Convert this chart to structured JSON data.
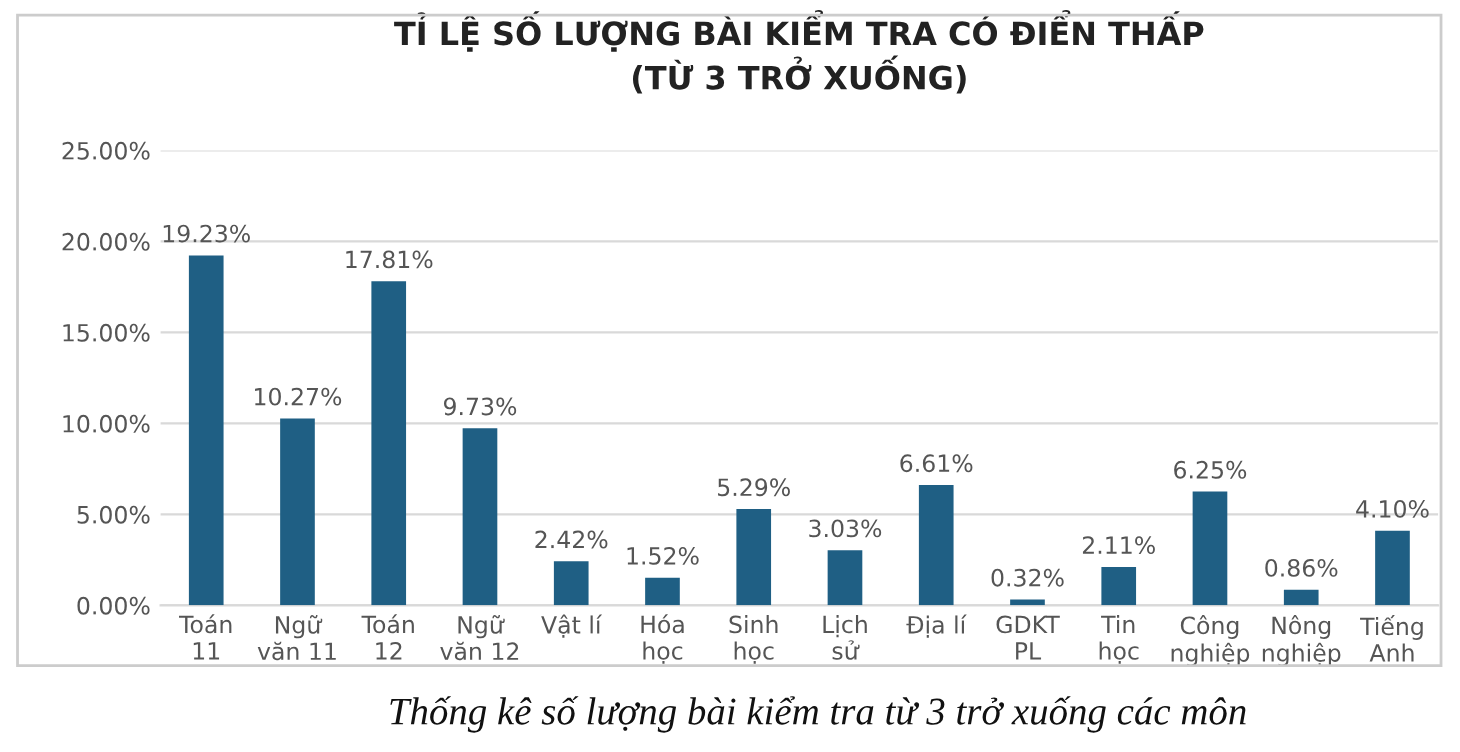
{
  "chart_data": {
    "type": "bar",
    "title": "TỈ LỆ SỐ LƯỢNG BÀI KIỂM TRA CÓ ĐIỂN THẤP\n(TỪ 3 TRỞ XUỐNG)",
    "categories": [
      "Toán\n11",
      "Ngữ\nvăn 11",
      "Toán\n12",
      "Ngữ\nvăn 12",
      "Vật lí",
      "Hóa\nhọc",
      "Sinh\nhọc",
      "Lịch\nsử",
      "Địa lí",
      "GDKT\nPL",
      "Tin\nhọc",
      "Công\nnghiệp",
      "Nông\nnghiệp",
      "Tiếng\nAnh"
    ],
    "values": [
      19.23,
      10.27,
      17.81,
      9.73,
      2.42,
      1.52,
      5.29,
      3.03,
      6.61,
      0.32,
      2.11,
      6.25,
      0.86,
      4.1
    ],
    "value_labels": [
      "19.23%",
      "10.27%",
      "17.81%",
      "9.73%",
      "2.42%",
      "1.52%",
      "5.29%",
      "3.03%",
      "6.61%",
      "0.32%",
      "2.11%",
      "6.25%",
      "0.86%",
      "4.10%"
    ],
    "color": "#1f5f84",
    "ylim": [
      0,
      25
    ],
    "yticks": [
      {
        "value": 0,
        "label": "0.00%"
      },
      {
        "value": 5,
        "label": "5.00%"
      },
      {
        "value": 10,
        "label": "10.00%"
      },
      {
        "value": 15,
        "label": "15.00%"
      },
      {
        "value": 20,
        "label": "20.00%"
      },
      {
        "value": 25,
        "label": "25.00%"
      }
    ],
    "grid": "y",
    "annotations": [
      "Thống kê số lượng bài kiểm tra từ 3 trở xuống các môn"
    ]
  }
}
